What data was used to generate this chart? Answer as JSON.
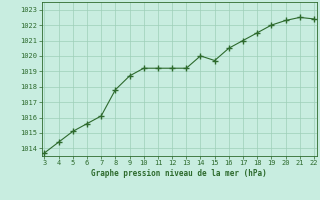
{
  "x": [
    3,
    4,
    5,
    6,
    7,
    8,
    9,
    10,
    11,
    12,
    13,
    14,
    15,
    16,
    17,
    18,
    19,
    20,
    21,
    22
  ],
  "y": [
    1013.7,
    1014.4,
    1015.1,
    1015.6,
    1016.1,
    1017.8,
    1018.7,
    1019.2,
    1019.2,
    1019.2,
    1019.2,
    1020.0,
    1019.7,
    1020.5,
    1021.0,
    1021.5,
    1022.0,
    1022.3,
    1022.5,
    1022.4
  ],
  "xlim": [
    3,
    22
  ],
  "ylim": [
    1013.5,
    1023.5
  ],
  "yticks": [
    1014,
    1015,
    1016,
    1017,
    1018,
    1019,
    1020,
    1021,
    1022,
    1023
  ],
  "xticks": [
    3,
    4,
    5,
    6,
    7,
    8,
    9,
    10,
    11,
    12,
    13,
    14,
    15,
    16,
    17,
    18,
    19,
    20,
    21,
    22
  ],
  "line_color": "#2d6a2d",
  "marker_color": "#2d6a2d",
  "bg_color": "#c8ede0",
  "grid_color": "#9ecfb8",
  "xlabel": "Graphe pression niveau de la mer (hPa)",
  "text_color": "#2d6a2d",
  "spine_color": "#2d6a2d"
}
